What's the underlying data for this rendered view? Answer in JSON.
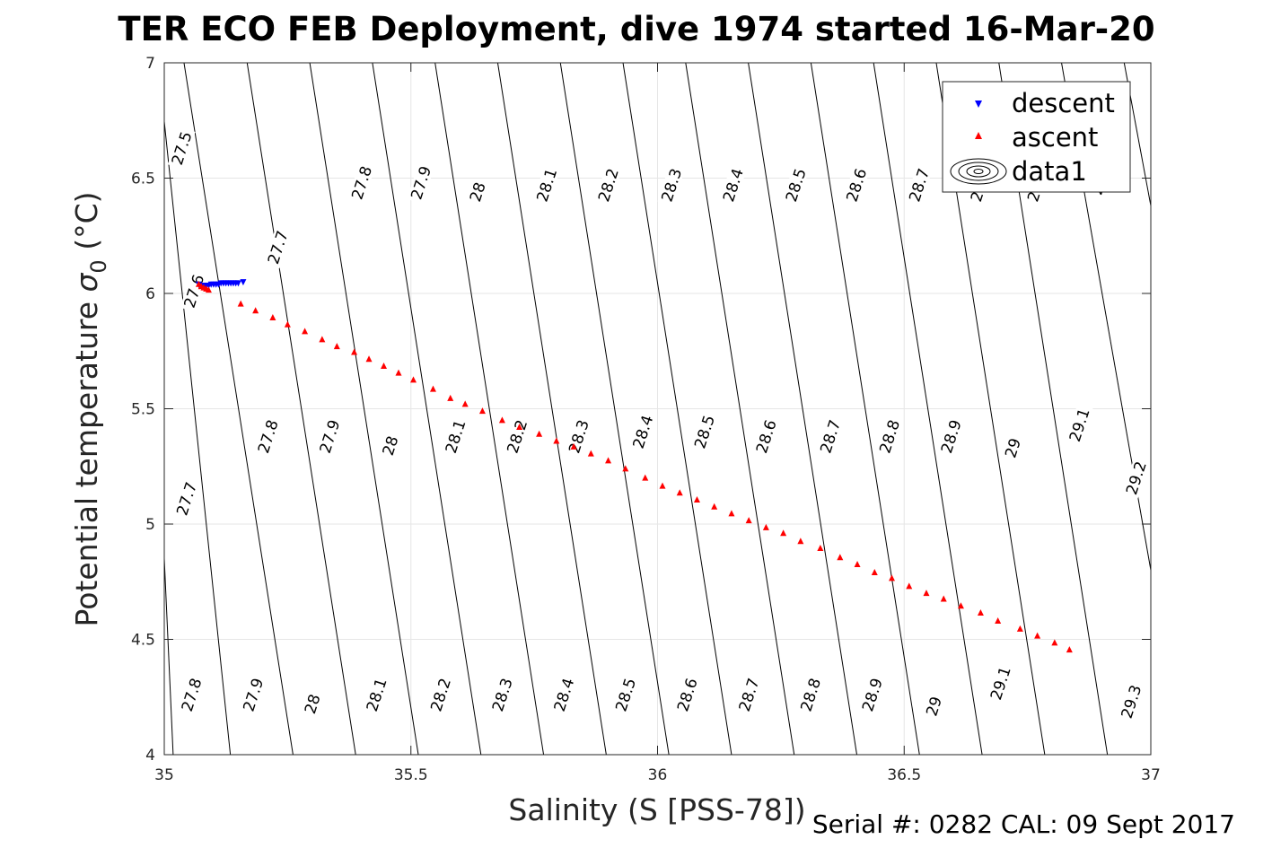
{
  "chart_data": {
    "type": "scatter",
    "title": "TER ECO FEB Deployment, dive 1974 started 16-Mar-20",
    "xlabel": "Salinity (S [PSS-78])",
    "ylabel_main": "Potential temperature ",
    "ylabel_sigma": "σ",
    "ylabel_sub": "0",
    "ylabel_unit": " (°C)",
    "footer": "Serial #: 0282  CAL: 09 Sept 2017",
    "xlim": [
      35,
      37
    ],
    "ylim": [
      4,
      7
    ],
    "xticks": [
      35,
      35.5,
      36,
      36.5,
      37
    ],
    "xtick_labels": [
      "35",
      "35.5",
      "36",
      "36.5",
      "37"
    ],
    "yticks": [
      4,
      4.5,
      5,
      5.5,
      6,
      6.5,
      7
    ],
    "ytick_labels": [
      "4",
      "4.5",
      "5",
      "5.5",
      "6",
      "6.5",
      "7"
    ],
    "grid": true,
    "legend_position": "top-right",
    "colors": {
      "descent": "#0000ff",
      "ascent": "#ff0000",
      "contour": "#000000",
      "grid": "#e6e6e6"
    },
    "series": [
      {
        "name": "descent",
        "marker": "triangle-down",
        "color": "#0000ff",
        "points": [
          [
            35.07,
            6.04
          ],
          [
            35.075,
            6.035
          ],
          [
            35.08,
            6.03
          ],
          [
            35.085,
            6.035
          ],
          [
            35.09,
            6.035
          ],
          [
            35.095,
            6.04
          ],
          [
            35.1,
            6.04
          ],
          [
            35.105,
            6.04
          ],
          [
            35.11,
            6.04
          ],
          [
            35.115,
            6.045
          ],
          [
            35.12,
            6.045
          ],
          [
            35.125,
            6.045
          ],
          [
            35.13,
            6.045
          ],
          [
            35.135,
            6.045
          ],
          [
            35.14,
            6.045
          ],
          [
            35.145,
            6.045
          ],
          [
            35.15,
            6.045
          ],
          [
            35.16,
            6.05
          ]
        ]
      },
      {
        "name": "ascent",
        "marker": "triangle-up",
        "color": "#ff0000",
        "points": [
          [
            35.07,
            6.04
          ],
          [
            35.075,
            6.03
          ],
          [
            35.08,
            6.025
          ],
          [
            35.085,
            6.02
          ],
          [
            35.09,
            6.015
          ],
          [
            35.155,
            5.955
          ],
          [
            35.185,
            5.925
          ],
          [
            35.22,
            5.895
          ],
          [
            35.25,
            5.865
          ],
          [
            35.285,
            5.835
          ],
          [
            35.32,
            5.8
          ],
          [
            35.35,
            5.77
          ],
          [
            35.385,
            5.745
          ],
          [
            35.415,
            5.715
          ],
          [
            35.445,
            5.685
          ],
          [
            35.475,
            5.655
          ],
          [
            35.505,
            5.625
          ],
          [
            35.545,
            5.585
          ],
          [
            35.58,
            5.545
          ],
          [
            35.61,
            5.52
          ],
          [
            35.645,
            5.49
          ],
          [
            35.685,
            5.45
          ],
          [
            35.72,
            5.42
          ],
          [
            35.76,
            5.39
          ],
          [
            35.795,
            5.36
          ],
          [
            35.83,
            5.335
          ],
          [
            35.865,
            5.305
          ],
          [
            35.9,
            5.275
          ],
          [
            35.935,
            5.24
          ],
          [
            35.975,
            5.2
          ],
          [
            36.01,
            5.165
          ],
          [
            36.045,
            5.135
          ],
          [
            36.08,
            5.105
          ],
          [
            36.115,
            5.075
          ],
          [
            36.15,
            5.045
          ],
          [
            36.185,
            5.015
          ],
          [
            36.22,
            4.985
          ],
          [
            36.255,
            4.96
          ],
          [
            36.29,
            4.925
          ],
          [
            36.33,
            4.895
          ],
          [
            36.37,
            4.855
          ],
          [
            36.405,
            4.825
          ],
          [
            36.44,
            4.79
          ],
          [
            36.475,
            4.765
          ],
          [
            36.51,
            4.73
          ],
          [
            36.545,
            4.7
          ],
          [
            36.58,
            4.675
          ],
          [
            36.615,
            4.645
          ],
          [
            36.655,
            4.615
          ],
          [
            36.69,
            4.58
          ],
          [
            36.735,
            4.545
          ],
          [
            36.77,
            4.515
          ],
          [
            36.805,
            4.485
          ],
          [
            36.835,
            4.455
          ]
        ]
      },
      {
        "name": "data1",
        "marker": "contour",
        "color": "#000000",
        "points": []
      }
    ],
    "contour_lines": [
      {
        "x1": 35.018,
        "y1": 4.0,
        "x2": 35.0,
        "y2": 4.85
      },
      {
        "x1": 35.134,
        "y1": 4.0,
        "x2": 34.99,
        "y2": 6.95
      },
      {
        "x1": 35.261,
        "y1": 4.0,
        "x2": 35.04,
        "y2": 7.0
      },
      {
        "x1": 35.388,
        "y1": 4.0,
        "x2": 35.168,
        "y2": 7.0
      },
      {
        "x1": 35.515,
        "y1": 4.0,
        "x2": 35.295,
        "y2": 7.0
      },
      {
        "x1": 35.642,
        "y1": 4.0,
        "x2": 35.422,
        "y2": 7.0
      },
      {
        "x1": 35.769,
        "y1": 4.0,
        "x2": 35.549,
        "y2": 7.0
      },
      {
        "x1": 35.896,
        "y1": 4.0,
        "x2": 35.676,
        "y2": 7.0
      },
      {
        "x1": 36.023,
        "y1": 4.0,
        "x2": 35.803,
        "y2": 7.0
      },
      {
        "x1": 36.15,
        "y1": 4.0,
        "x2": 35.93,
        "y2": 7.0
      },
      {
        "x1": 36.277,
        "y1": 4.0,
        "x2": 36.057,
        "y2": 7.0
      },
      {
        "x1": 36.404,
        "y1": 4.0,
        "x2": 36.184,
        "y2": 7.0
      },
      {
        "x1": 36.531,
        "y1": 4.0,
        "x2": 36.311,
        "y2": 7.0
      },
      {
        "x1": 36.658,
        "y1": 4.0,
        "x2": 36.438,
        "y2": 7.0
      },
      {
        "x1": 36.785,
        "y1": 4.0,
        "x2": 36.565,
        "y2": 7.0
      },
      {
        "x1": 36.912,
        "y1": 4.0,
        "x2": 36.692,
        "y2": 7.0
      },
      {
        "x1": 37.0,
        "y1": 4.8,
        "x2": 36.819,
        "y2": 7.0
      },
      {
        "x1": 37.0,
        "y1": 6.38,
        "x2": 36.946,
        "y2": 7.0
      }
    ],
    "contour_labels": [
      {
        "text": "27.5",
        "x": 35.035,
        "y": 6.63
      },
      {
        "text": "27.6",
        "x": 35.06,
        "y": 6.01
      },
      {
        "text": "27.7",
        "x": 35.23,
        "y": 6.2
      },
      {
        "text": "27.8",
        "x": 35.4,
        "y": 6.48
      },
      {
        "text": "27.9",
        "x": 35.52,
        "y": 6.48
      },
      {
        "text": "28",
        "x": 35.635,
        "y": 6.44
      },
      {
        "text": "28.1",
        "x": 35.775,
        "y": 6.47
      },
      {
        "text": "28.2",
        "x": 35.9,
        "y": 6.47
      },
      {
        "text": "28.3",
        "x": 36.028,
        "y": 6.47
      },
      {
        "text": "28.4",
        "x": 36.153,
        "y": 6.47
      },
      {
        "text": "28.5",
        "x": 36.28,
        "y": 6.47
      },
      {
        "text": "28.6",
        "x": 36.403,
        "y": 6.47
      },
      {
        "text": "28.7",
        "x": 36.53,
        "y": 6.47
      },
      {
        "text": "28.8",
        "x": 36.655,
        "y": 6.47
      },
      {
        "text": "28.9",
        "x": 36.77,
        "y": 6.47
      },
      {
        "text": "29",
        "x": 36.895,
        "y": 6.47
      },
      {
        "text": "27.7",
        "x": 35.045,
        "y": 5.11
      },
      {
        "text": "27.8",
        "x": 35.21,
        "y": 5.38
      },
      {
        "text": "27.9",
        "x": 35.335,
        "y": 5.38
      },
      {
        "text": "28",
        "x": 35.458,
        "y": 5.34
      },
      {
        "text": "28.1",
        "x": 35.59,
        "y": 5.38
      },
      {
        "text": "28.2",
        "x": 35.715,
        "y": 5.38
      },
      {
        "text": "28.3",
        "x": 35.84,
        "y": 5.38
      },
      {
        "text": "28.4",
        "x": 35.97,
        "y": 5.4
      },
      {
        "text": "28.5",
        "x": 36.095,
        "y": 5.4
      },
      {
        "text": "28.6",
        "x": 36.22,
        "y": 5.38
      },
      {
        "text": "28.7",
        "x": 36.35,
        "y": 5.38
      },
      {
        "text": "28.8",
        "x": 36.47,
        "y": 5.38
      },
      {
        "text": "28.9",
        "x": 36.595,
        "y": 5.38
      },
      {
        "text": "29",
        "x": 36.72,
        "y": 5.33
      },
      {
        "text": "29.1",
        "x": 36.855,
        "y": 5.43
      },
      {
        "text": "29.2",
        "x": 36.97,
        "y": 5.2
      },
      {
        "text": "27.8",
        "x": 35.055,
        "y": 4.26
      },
      {
        "text": "27.9",
        "x": 35.18,
        "y": 4.26
      },
      {
        "text": "28",
        "x": 35.3,
        "y": 4.22
      },
      {
        "text": "28.1",
        "x": 35.43,
        "y": 4.26
      },
      {
        "text": "28.2",
        "x": 35.56,
        "y": 4.26
      },
      {
        "text": "28.3",
        "x": 35.685,
        "y": 4.26
      },
      {
        "text": "28.4",
        "x": 35.81,
        "y": 4.26
      },
      {
        "text": "28.5",
        "x": 35.935,
        "y": 4.26
      },
      {
        "text": "28.6",
        "x": 36.06,
        "y": 4.26
      },
      {
        "text": "28.7",
        "x": 36.185,
        "y": 4.26
      },
      {
        "text": "28.8",
        "x": 36.31,
        "y": 4.26
      },
      {
        "text": "28.9",
        "x": 36.435,
        "y": 4.26
      },
      {
        "text": "29",
        "x": 36.56,
        "y": 4.21
      },
      {
        "text": "29.1",
        "x": 36.695,
        "y": 4.31
      },
      {
        "text": "29.3",
        "x": 36.96,
        "y": 4.23
      }
    ]
  }
}
